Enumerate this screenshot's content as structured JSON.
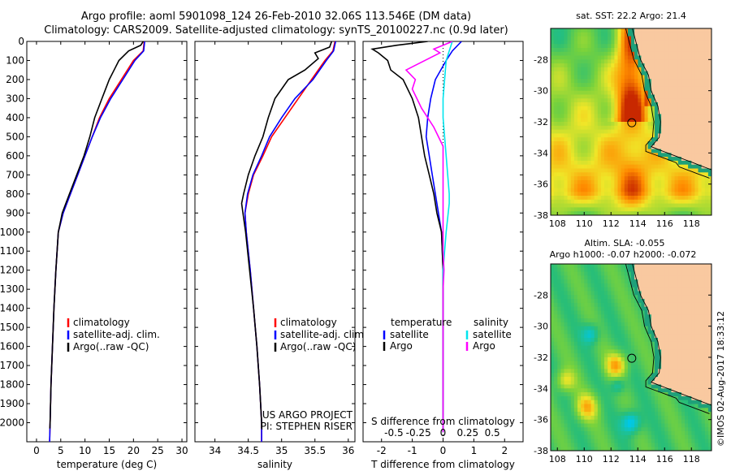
{
  "header": {
    "line1": "Argo profile: aoml 5901098_124 26-Feb-2010 32.06S 113.546E (DM data)",
    "line2": "Climatology: CARS2009. Satellite-adjusted climatology: synTS_20100227.nc (0.9d later)"
  },
  "colors": {
    "climatology": "#ff0000",
    "satellite": "#0000ff",
    "argo": "#000000",
    "sat_s": "#00e5ee",
    "argo_s": "#ff00ff",
    "land": "#f9c9a0",
    "coast_shelf": "#1fa079"
  },
  "chart_data": [
    {
      "type": "line",
      "xlabel": "temperature (deg C)",
      "ylabel": "",
      "xlim": [
        -2,
        31
      ],
      "ylim": [
        2100,
        0
      ],
      "x_ticks": [
        0,
        5,
        10,
        15,
        20,
        25,
        30
      ],
      "y_ticks": [
        0,
        100,
        200,
        300,
        400,
        500,
        600,
        700,
        800,
        900,
        1000,
        1100,
        1200,
        1300,
        1400,
        1500,
        1600,
        1700,
        1800,
        1900,
        2000
      ],
      "y_tick_labels": [
        "0",
        "100",
        "200",
        "300",
        "400",
        "500",
        "600",
        "700",
        "800",
        "900",
        "1000",
        "1100",
        "1200",
        "1300",
        "1400",
        "1500",
        "1600",
        "1700",
        "1800",
        "1900",
        "2000"
      ],
      "legend": [
        "climatology",
        "satellite-adj. clim.",
        "Argo(..raw -QC)"
      ],
      "series": [
        {
          "name": "climatology",
          "color": "#ff0000",
          "points": [
            [
              22.2,
              0
            ],
            [
              22,
              50
            ],
            [
              20,
              100
            ],
            [
              17.5,
              200
            ],
            [
              15,
              300
            ],
            [
              13,
              400
            ],
            [
              11.5,
              500
            ],
            [
              10,
              600
            ],
            [
              8.5,
              700
            ],
            [
              7,
              800
            ],
            [
              5.5,
              900
            ],
            [
              4.5,
              1000
            ],
            [
              4,
              1200
            ],
            [
              3.6,
              1400
            ],
            [
              3.3,
              1600
            ],
            [
              3,
              1800
            ],
            [
              2.8,
              2000
            ],
            [
              2.7,
              2100
            ]
          ]
        },
        {
          "name": "satellite-adj. clim.",
          "color": "#0000ff",
          "points": [
            [
              22.3,
              0
            ],
            [
              22.1,
              50
            ],
            [
              20.3,
              100
            ],
            [
              17.8,
              200
            ],
            [
              15.3,
              300
            ],
            [
              13.2,
              400
            ],
            [
              11.5,
              500
            ],
            [
              10,
              600
            ],
            [
              8.5,
              700
            ],
            [
              7,
              800
            ],
            [
              5.5,
              900
            ],
            [
              4.5,
              1000
            ],
            [
              4,
              1200
            ],
            [
              3.6,
              1400
            ],
            [
              3.3,
              1600
            ],
            [
              3,
              1800
            ],
            [
              2.8,
              2000
            ],
            [
              2.7,
              2100
            ]
          ]
        },
        {
          "name": "Argo(..raw -QC)",
          "color": "#000000",
          "points": [
            [
              22,
              0
            ],
            [
              21.5,
              20
            ],
            [
              19,
              50
            ],
            [
              17,
              100
            ],
            [
              16,
              150
            ],
            [
              15,
              200
            ],
            [
              13.5,
              300
            ],
            [
              12,
              400
            ],
            [
              11,
              500
            ],
            [
              9.8,
              600
            ],
            [
              8.3,
              700
            ],
            [
              6.8,
              800
            ],
            [
              5.3,
              900
            ],
            [
              4.5,
              1000
            ],
            [
              4,
              1200
            ],
            [
              3.6,
              1400
            ],
            [
              3.3,
              1600
            ],
            [
              3,
              1800
            ],
            [
              2.8,
              2000
            ],
            [
              2.75,
              2030
            ]
          ]
        }
      ]
    },
    {
      "type": "line",
      "xlabel": "salinity",
      "ylabel": "",
      "xlim": [
        33.7,
        36.1
      ],
      "ylim": [
        2100,
        0
      ],
      "x_ticks": [
        34,
        34.5,
        35,
        35.5,
        36
      ],
      "x_tick_labels": [
        "34",
        "34.5",
        "35",
        "35.5",
        "36"
      ],
      "legend": [
        "climatology",
        "satellite-adj. clim.",
        "Argo(..raw -QC)"
      ],
      "annotation": [
        "US ARGO PROJECT",
        "PI: STEPHEN RISER"
      ],
      "series": [
        {
          "name": "climatology",
          "color": "#ff0000",
          "points": [
            [
              35.8,
              0
            ],
            [
              35.77,
              50
            ],
            [
              35.65,
              100
            ],
            [
              35.45,
              200
            ],
            [
              35.25,
              300
            ],
            [
              35.05,
              400
            ],
            [
              34.85,
              500
            ],
            [
              34.72,
              600
            ],
            [
              34.58,
              700
            ],
            [
              34.5,
              800
            ],
            [
              34.45,
              900
            ],
            [
              34.47,
              1000
            ],
            [
              34.53,
              1200
            ],
            [
              34.58,
              1400
            ],
            [
              34.63,
              1600
            ],
            [
              34.67,
              1800
            ],
            [
              34.7,
              2000
            ],
            [
              34.7,
              2100
            ]
          ]
        },
        {
          "name": "satellite-adj. clim.",
          "color": "#0000ff",
          "points": [
            [
              35.81,
              0
            ],
            [
              35.78,
              50
            ],
            [
              35.67,
              100
            ],
            [
              35.47,
              200
            ],
            [
              35.2,
              300
            ],
            [
              35,
              400
            ],
            [
              34.82,
              500
            ],
            [
              34.7,
              600
            ],
            [
              34.57,
              700
            ],
            [
              34.49,
              800
            ],
            [
              34.45,
              900
            ],
            [
              34.47,
              1000
            ],
            [
              34.53,
              1200
            ],
            [
              34.58,
              1400
            ],
            [
              34.63,
              1600
            ],
            [
              34.67,
              1800
            ],
            [
              34.7,
              2000
            ],
            [
              34.7,
              2100
            ]
          ]
        },
        {
          "name": "Argo(..raw -QC)",
          "color": "#000000",
          "points": [
            [
              35.75,
              0
            ],
            [
              35.72,
              30
            ],
            [
              35.5,
              60
            ],
            [
              35.55,
              90
            ],
            [
              35.35,
              150
            ],
            [
              35.1,
              200
            ],
            [
              34.9,
              300
            ],
            [
              34.8,
              400
            ],
            [
              34.72,
              500
            ],
            [
              34.6,
              600
            ],
            [
              34.5,
              700
            ],
            [
              34.43,
              800
            ],
            [
              34.4,
              850
            ],
            [
              34.42,
              900
            ],
            [
              34.46,
              1000
            ],
            [
              34.52,
              1200
            ],
            [
              34.58,
              1400
            ],
            [
              34.63,
              1600
            ],
            [
              34.67,
              1800
            ],
            [
              34.7,
              2000
            ],
            [
              34.7,
              2030
            ]
          ]
        }
      ]
    },
    {
      "type": "line",
      "xlabel": "T difference from climatology",
      "ylabel": "",
      "xlim": [
        -2.6,
        2.6
      ],
      "ylim": [
        2100,
        0
      ],
      "x_ticks": [
        -2,
        -1,
        0,
        1,
        2
      ],
      "top_axis_label": "S difference from climatology",
      "top_ticks": [
        "-0.5",
        "-0.25",
        "0",
        "0.25",
        "0.5"
      ],
      "legend": {
        "temperature": [
          "satellite",
          "Argo"
        ],
        "salinity": [
          "satellite",
          "Argo"
        ]
      },
      "series": [
        {
          "name": "satellite",
          "color": "#0000ff",
          "points": [
            [
              0.6,
              0
            ],
            [
              0.3,
              50
            ],
            [
              0.1,
              100
            ],
            [
              -0.25,
              200
            ],
            [
              -0.4,
              300
            ],
            [
              -0.5,
              400
            ],
            [
              -0.55,
              500
            ],
            [
              -0.45,
              600
            ],
            [
              -0.35,
              700
            ],
            [
              -0.25,
              800
            ],
            [
              -0.15,
              900
            ],
            [
              -0.05,
              1000
            ],
            [
              0,
              1200
            ],
            [
              0,
              2050
            ]
          ]
        },
        {
          "name": "Argo",
          "color": "#000000",
          "points": [
            [
              -0.5,
              0
            ],
            [
              -1.5,
              20
            ],
            [
              -2.3,
              40
            ],
            [
              -2.1,
              60
            ],
            [
              -1.8,
              100
            ],
            [
              -1.7,
              150
            ],
            [
              -1.3,
              200
            ],
            [
              -1,
              300
            ],
            [
              -0.8,
              400
            ],
            [
              -0.7,
              500
            ],
            [
              -0.6,
              600
            ],
            [
              -0.45,
              700
            ],
            [
              -0.3,
              800
            ],
            [
              -0.2,
              900
            ],
            [
              -0.05,
              1000
            ],
            [
              0,
              1200
            ],
            [
              0,
              2050
            ]
          ]
        },
        {
          "name": "satellite",
          "color": "#00e5ee",
          "points": [
            [
              0.3,
              0
            ],
            [
              0.2,
              50
            ],
            [
              0.1,
              100
            ],
            [
              0.05,
              200
            ],
            [
              0,
              300
            ],
            [
              0,
              400
            ],
            [
              0.05,
              500
            ],
            [
              0.1,
              600
            ],
            [
              0.15,
              700
            ],
            [
              0.2,
              800
            ],
            [
              0.2,
              850
            ],
            [
              0.1,
              1000
            ],
            [
              0,
              1200
            ],
            [
              0,
              2050
            ]
          ]
        },
        {
          "name": "Argo",
          "color": "#ff00ff",
          "points": [
            [
              0.3,
              0
            ],
            [
              0,
              20
            ],
            [
              -0.3,
              40
            ],
            [
              -0.1,
              60
            ],
            [
              -1.2,
              150
            ],
            [
              -0.9,
              200
            ],
            [
              -1,
              250
            ],
            [
              -0.7,
              350
            ],
            [
              -0.3,
              450
            ],
            [
              0,
              550
            ],
            [
              0,
              650
            ],
            [
              0,
              1100
            ],
            [
              0.03,
              1200
            ],
            [
              0,
              1300
            ],
            [
              0,
              2050
            ]
          ]
        }
      ]
    },
    {
      "type": "heatmap",
      "title": "sat. SST: 22.2  Argo: 21.4",
      "xlim": [
        107.5,
        119.5
      ],
      "ylim": [
        -38,
        -26
      ],
      "x_ticks": [
        108,
        110,
        112,
        114,
        116,
        118
      ],
      "y_ticks": [
        -28,
        -30,
        -32,
        -34,
        -36,
        -38
      ],
      "marker": {
        "lon": 113.55,
        "lat": -32.06
      }
    },
    {
      "type": "heatmap",
      "title": "Altim. SLA: -0.055",
      "subtitle": "Argo h1000: -0.07 h2000: -0.072",
      "xlim": [
        107.5,
        119.5
      ],
      "ylim": [
        -38,
        -26
      ],
      "x_ticks": [
        108,
        110,
        112,
        114,
        116,
        118
      ],
      "y_ticks": [
        -28,
        -30,
        -32,
        -34,
        -36,
        -38
      ],
      "marker": {
        "lon": 113.55,
        "lat": -32.06
      }
    }
  ],
  "watermark": "©IMOS 02-Aug-2017 18:33:12"
}
